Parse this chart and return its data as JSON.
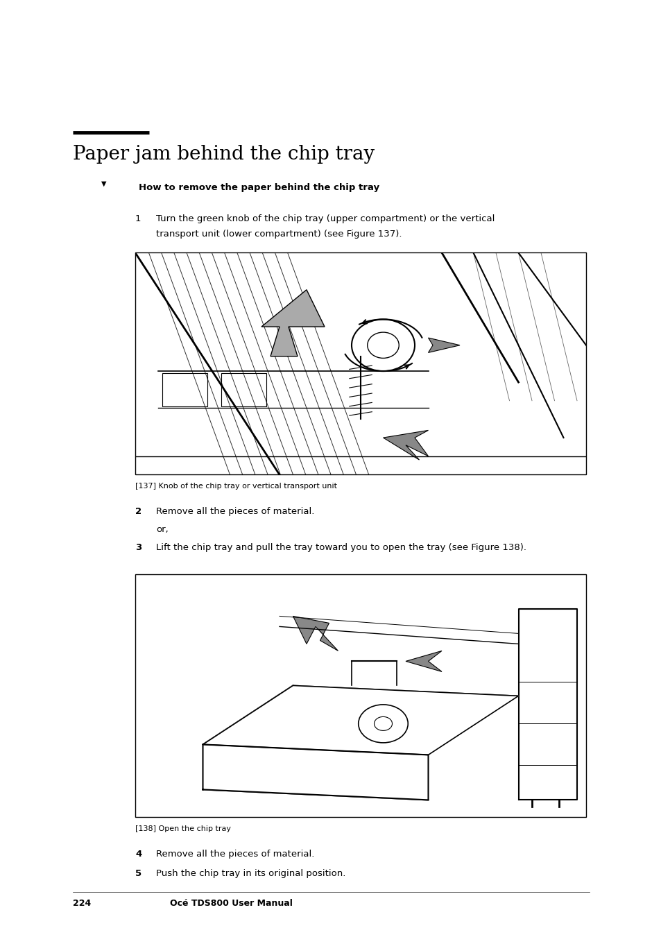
{
  "bg_color": "#ffffff",
  "page_width": 9.54,
  "page_height": 13.51,
  "dpi": 100,
  "title": "Paper jam behind the chip tray",
  "title_fontsize": 20,
  "title_color": "#000000",
  "section_header": "How to remove the paper behind the chip tray",
  "section_header_fontsize": 9.5,
  "body_fontsize": 9.5,
  "caption_fontsize": 8,
  "footer_fontsize": 9,
  "footer_page": "224",
  "footer_manual": "Océ TDS800 User Manual"
}
